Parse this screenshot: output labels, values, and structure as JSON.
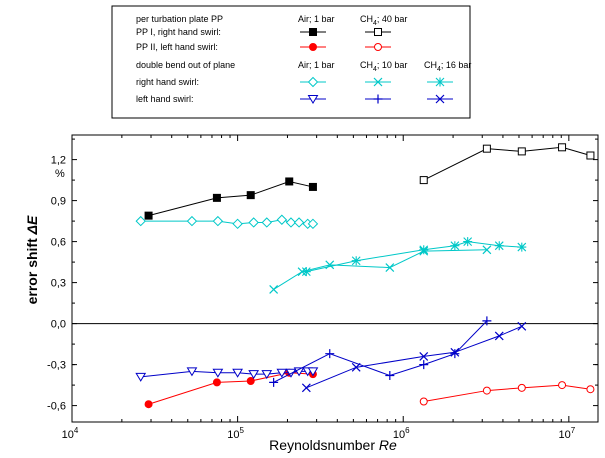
{
  "chart_data": {
    "type": "line",
    "x_scale": "log",
    "xlim": [
      10000,
      15000000
    ],
    "ylim": [
      -0.72,
      1.38
    ],
    "ylabel": "error shift ΔE",
    "ylabel_parts": [
      "error shift ",
      "ΔE"
    ],
    "y_unit": "%",
    "xlabel": "Reynoldsnumber Re",
    "xlabel_parts": [
      "Reynoldsnumber ",
      "Re"
    ],
    "xticks": [
      {
        "value": 10000,
        "base": "10",
        "exp": "4"
      },
      {
        "value": 100000,
        "base": "10",
        "exp": "5"
      },
      {
        "value": 1000000,
        "base": "10",
        "exp": "6"
      },
      {
        "value": 10000000,
        "base": "10",
        "exp": "7"
      }
    ],
    "yticks": [
      {
        "value": -0.6,
        "label": "-0,6"
      },
      {
        "value": -0.3,
        "label": "-0,3"
      },
      {
        "value": 0.0,
        "label": "0,0"
      },
      {
        "value": 0.3,
        "label": "0,3"
      },
      {
        "value": 0.6,
        "label": "0,6"
      },
      {
        "value": 0.9,
        "label": "0,9"
      },
      {
        "value": 1.2,
        "label": "1,2"
      }
    ],
    "legend": {
      "placement": "top",
      "header1": "per turbation plate PP",
      "col_air1": "Air; 1 bar",
      "col_ch4_40": "CH4; 40 bar",
      "row_pp1": "PP I, right hand swirl:",
      "row_pp2": "PP II, left hand swirl:",
      "header2": "double bend out of plane",
      "col_air1b": "Air; 1 bar",
      "col_ch4_10": "CH4; 10 bar",
      "col_ch4_16": "CH4; 16 bar",
      "row_right": "right hand swirl:",
      "row_left": "left hand swirl:"
    },
    "series": [
      {
        "key": "pp1_air",
        "color": "#000000",
        "marker": "square-filled",
        "x": [
          29000,
          75000,
          120000,
          205000,
          285000
        ],
        "y": [
          0.79,
          0.92,
          0.94,
          1.04,
          1.0
        ]
      },
      {
        "key": "pp1_ch4",
        "color": "#000000",
        "marker": "square-open",
        "x": [
          1330000,
          3200000,
          5200000,
          9100000,
          13500000
        ],
        "y": [
          1.05,
          1.28,
          1.26,
          1.29,
          1.23
        ]
      },
      {
        "key": "pp2_air",
        "color": "#ff0000",
        "marker": "circle-filled",
        "x": [
          29000,
          75000,
          120000,
          205000,
          285000
        ],
        "y": [
          -0.59,
          -0.43,
          -0.42,
          -0.36,
          -0.37
        ]
      },
      {
        "key": "pp2_ch4",
        "color": "#ff0000",
        "marker": "circle-open",
        "x": [
          1330000,
          3200000,
          5200000,
          9100000,
          13500000
        ],
        "y": [
          -0.57,
          -0.49,
          -0.47,
          -0.45,
          -0.48
        ]
      },
      {
        "key": "db_right_air",
        "color": "#00c8c8",
        "marker": "diamond-open",
        "x": [
          26000,
          53000,
          76000,
          100000,
          125000,
          150000,
          185000,
          210000,
          235000,
          265000,
          285000
        ],
        "y": [
          0.75,
          0.75,
          0.75,
          0.73,
          0.74,
          0.74,
          0.76,
          0.74,
          0.74,
          0.73,
          0.73
        ]
      },
      {
        "key": "db_right_ch4_10",
        "color": "#00c8c8",
        "marker": "x",
        "x": [
          165000,
          245000,
          360000,
          830000,
          1330000,
          3200000
        ],
        "y": [
          0.25,
          0.38,
          0.43,
          0.41,
          0.53,
          0.54
        ]
      },
      {
        "key": "db_right_ch4_16",
        "color": "#00c8c8",
        "marker": "asterisk",
        "x": [
          260000,
          520000,
          1330000,
          2050000,
          2450000,
          3800000,
          5200000
        ],
        "y": [
          0.38,
          0.46,
          0.54,
          0.57,
          0.6,
          0.57,
          0.56
        ]
      },
      {
        "key": "db_left_air",
        "color": "#0000c8",
        "marker": "triangle-down-open",
        "x": [
          26000,
          53000,
          76000,
          100000,
          125000,
          150000,
          185000,
          210000,
          235000,
          265000,
          285000
        ],
        "y": [
          -0.39,
          -0.35,
          -0.36,
          -0.36,
          -0.37,
          -0.37,
          -0.36,
          -0.36,
          -0.35,
          -0.35,
          -0.35
        ]
      },
      {
        "key": "db_left_ch4_10",
        "color": "#0000c8",
        "marker": "plus",
        "x": [
          165000,
          360000,
          830000,
          1330000,
          2050000,
          3200000
        ],
        "y": [
          -0.43,
          -0.22,
          -0.38,
          -0.3,
          -0.22,
          0.02
        ]
      },
      {
        "key": "db_left_ch4_16",
        "color": "#0000c8",
        "marker": "x",
        "x": [
          260000,
          520000,
          1330000,
          2050000,
          3800000,
          5200000
        ],
        "y": [
          -0.47,
          -0.32,
          -0.24,
          -0.21,
          -0.09,
          -0.02
        ]
      }
    ]
  }
}
